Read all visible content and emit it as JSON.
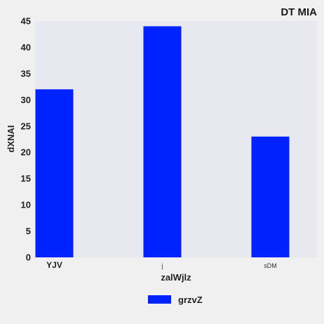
{
  "chart_data": {
    "type": "bar",
    "title": "DT  MIA",
    "xlabel": "zalWjlz",
    "ylabel": "dXNAI",
    "categories": [
      "YJV",
      "j",
      "sDM"
    ],
    "series": [
      {
        "name": "grzvZ",
        "values": [
          32,
          44,
          23
        ]
      }
    ],
    "ylim": [
      0,
      45
    ],
    "yticks": [
      0,
      5,
      10,
      15,
      20,
      25,
      30,
      35,
      40,
      45
    ],
    "grid": false,
    "legend_position": "bottom-center",
    "colors": {
      "bar": "#0022ff",
      "plot_background": "#e8e8f0",
      "page_background": "#f0f0f0"
    }
  }
}
